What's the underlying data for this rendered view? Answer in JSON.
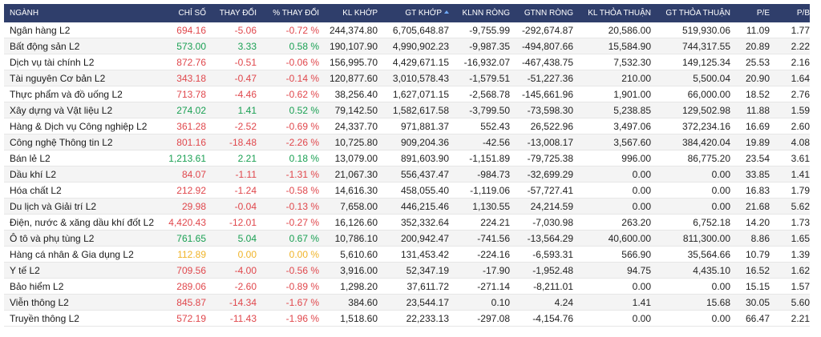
{
  "table": {
    "header": [
      "NGÀNH",
      "CHỈ SỐ",
      "THAY ĐỔI",
      "% THAY ĐỔI",
      "KL KHỚP",
      "GT KHỚP",
      "KLNN RÒNG",
      "GTNN RÒNG",
      "KL THỎA THUẬN",
      "GT THỎA THUẬN",
      "P/E",
      "P/B"
    ],
    "colored_columns": [
      1,
      2,
      3
    ],
    "row_colors": [
      "#e0474c",
      "#1aa053",
      "#e0474c",
      "#e0474c",
      "#e0474c",
      "#1aa053",
      "#e0474c",
      "#e0474c",
      "#1aa053",
      "#e0474c",
      "#e0474c",
      "#e0474c",
      "#e0474c",
      "#1aa053",
      "#f0b429",
      "#e0474c",
      "#e0474c",
      "#e0474c",
      "#e0474c"
    ],
    "rows": [
      [
        "Ngân hàng L2",
        "694.16",
        "-5.06",
        "-0.72 %",
        "244,374.80",
        "6,705,648.87",
        "-9,755.99",
        "-292,674.87",
        "20,586.00",
        "519,930.06",
        "11.09",
        "1.77"
      ],
      [
        "Bất động sản L2",
        "573.00",
        "3.33",
        "0.58 %",
        "190,107.90",
        "4,990,902.23",
        "-9,987.35",
        "-494,807.66",
        "15,584.90",
        "744,317.55",
        "20.89",
        "2.22"
      ],
      [
        "Dịch vụ tài chính L2",
        "872.76",
        "-0.51",
        "-0.06 %",
        "156,995.70",
        "4,429,671.15",
        "-16,932.07",
        "-467,438.75",
        "7,532.30",
        "149,125.34",
        "25.53",
        "2.16"
      ],
      [
        "Tài nguyên Cơ bản L2",
        "343.18",
        "-0.47",
        "-0.14 %",
        "120,877.60",
        "3,010,578.43",
        "-1,579.51",
        "-51,227.36",
        "210.00",
        "5,500.04",
        "20.90",
        "1.64"
      ],
      [
        "Thực phẩm và đồ uống L2",
        "713.78",
        "-4.46",
        "-0.62 %",
        "38,256.40",
        "1,627,071.15",
        "-2,568.78",
        "-145,661.96",
        "1,901.00",
        "66,000.00",
        "18.52",
        "2.76"
      ],
      [
        "Xây dựng và Vật liệu L2",
        "274.02",
        "1.41",
        "0.52 %",
        "79,142.50",
        "1,582,617.58",
        "-3,799.50",
        "-73,598.30",
        "5,238.85",
        "129,502.98",
        "11.88",
        "1.59"
      ],
      [
        "Hàng & Dịch vụ Công nghiệp L2",
        "361.28",
        "-2.52",
        "-0.69 %",
        "24,337.70",
        "971,881.37",
        "552.43",
        "26,522.96",
        "3,497.06",
        "372,234.16",
        "16.69",
        "2.60"
      ],
      [
        "Công nghệ Thông tin L2",
        "801.16",
        "-18.48",
        "-2.26 %",
        "10,725.80",
        "909,204.36",
        "-42.56",
        "-13,008.17",
        "3,567.60",
        "384,420.04",
        "19.89",
        "4.08"
      ],
      [
        "Bán lẻ L2",
        "1,213.61",
        "2.21",
        "0.18 %",
        "13,079.00",
        "891,603.90",
        "-1,151.89",
        "-79,725.38",
        "996.00",
        "86,775.20",
        "23.54",
        "3.61"
      ],
      [
        "Dầu khí L2",
        "84.07",
        "-1.11",
        "-1.31 %",
        "21,067.30",
        "556,437.47",
        "-984.73",
        "-32,699.29",
        "0.00",
        "0.00",
        "33.85",
        "1.41"
      ],
      [
        "Hóa chất L2",
        "212.92",
        "-1.24",
        "-0.58 %",
        "14,616.30",
        "458,055.40",
        "-1,119.06",
        "-57,727.41",
        "0.00",
        "0.00",
        "16.83",
        "1.79"
      ],
      [
        "Du lịch và Giải trí L2",
        "29.98",
        "-0.04",
        "-0.13 %",
        "7,658.00",
        "446,215.46",
        "1,130.55",
        "24,214.59",
        "0.00",
        "0.00",
        "21.68",
        "5.62"
      ],
      [
        "Điện, nước & xăng dầu khí đốt L2",
        "4,420.43",
        "-12.01",
        "-0.27 %",
        "16,126.60",
        "352,332.64",
        "224.21",
        "-7,030.98",
        "263.20",
        "6,752.18",
        "14.20",
        "1.73"
      ],
      [
        "Ô tô và phụ tùng L2",
        "761.65",
        "5.04",
        "0.67 %",
        "10,786.10",
        "200,942.47",
        "-741.56",
        "-13,564.29",
        "40,600.00",
        "811,300.00",
        "8.86",
        "1.65"
      ],
      [
        "Hàng cá nhân & Gia dụng L2",
        "112.89",
        "0.00",
        "0.00 %",
        "5,610.60",
        "131,453.42",
        "-224.16",
        "-6,593.31",
        "566.90",
        "35,564.66",
        "10.79",
        "1.39"
      ],
      [
        "Y tế L2",
        "709.56",
        "-4.00",
        "-0.56 %",
        "3,916.00",
        "52,347.19",
        "-17.90",
        "-1,952.48",
        "94.75",
        "4,435.10",
        "16.52",
        "1.62"
      ],
      [
        "Bảo hiểm L2",
        "289.06",
        "-2.60",
        "-0.89 %",
        "1,298.20",
        "37,611.72",
        "-271.14",
        "-8,211.01",
        "0.00",
        "0.00",
        "15.15",
        "1.57"
      ],
      [
        "Viễn thông L2",
        "845.87",
        "-14.34",
        "-1.67 %",
        "384.60",
        "23,544.17",
        "0.10",
        "4.24",
        "1.41",
        "15.68",
        "30.05",
        "5.60"
      ],
      [
        "Truyền thông L2",
        "572.19",
        "-11.43",
        "-1.96 %",
        "1,518.60",
        "22,233.13",
        "-297.08",
        "-4,154.76",
        "0.00",
        "0.00",
        "66.47",
        "2.21"
      ]
    ]
  }
}
